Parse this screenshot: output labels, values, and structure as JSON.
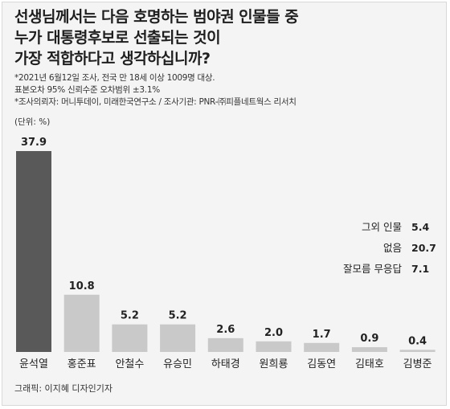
{
  "title_lines": [
    "선생님께서는 다음 호명하는 범야권 인물들 중",
    "누가 대통령후보로 선출되는 것이",
    "가장 적합하다고 생각하십니까?"
  ],
  "notes": [
    "*2021년 6월12일 조사, 전국 만 18세 이상 1009명 대상.",
    "표본오차 95% 신뢰수준 오차범위 ±3.1%",
    "*조사의뢰자: 머니투데이, 미래한국연구소 / 조사기관: PNR-㈜피플네트웍스 리서치"
  ],
  "unit": "(단위: %)",
  "credit": "그래픽: 이지혜 디자인기자",
  "colors": {
    "highlight_bar": "#595959",
    "bar": "#c9c9c9",
    "background": "#f4f4f4"
  },
  "chart_data": {
    "type": "bar",
    "categories": [
      "윤석열",
      "홍준표",
      "안철수",
      "유승민",
      "하태경",
      "원희룡",
      "김동연",
      "김태호",
      "김병준"
    ],
    "values": [
      37.9,
      10.8,
      5.2,
      5.2,
      2.6,
      2.0,
      1.7,
      0.9,
      0.4
    ],
    "value_labels": [
      "37.9",
      "10.8",
      "5.2",
      "5.2",
      "2.6",
      "2.0",
      "1.7",
      "0.9",
      "0.4"
    ],
    "highlight_index": 0,
    "ylim": [
      0,
      37.9
    ],
    "grid": false,
    "legend": "none"
  },
  "side_stats": [
    {
      "label": "그외 인물",
      "value": "5.4"
    },
    {
      "label": "없음",
      "value": "20.7"
    },
    {
      "label": "잘모름 무응답",
      "value": "7.1"
    }
  ]
}
